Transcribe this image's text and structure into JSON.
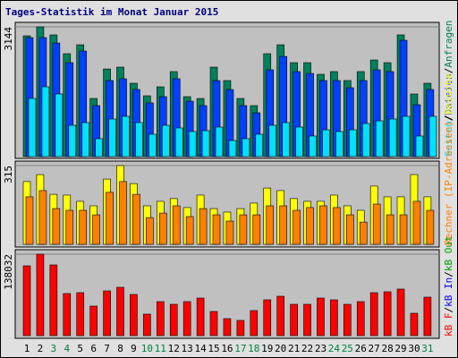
{
  "title": "Tages-Statistik im Monat Januar 2015",
  "legend_separator": "/",
  "chart_data": [
    {
      "type": "bar",
      "ylim": [
        0,
        3144
      ],
      "yticks": [
        3144
      ],
      "grid": true,
      "series": [
        {
          "name": "Anfragen",
          "color": "#00805c",
          "values": [
            2927,
            3144,
            2949,
            2493,
            2710,
            1409,
            2124,
            2168,
            1778,
            1474,
            1691,
            2060,
            1453,
            1409,
            2168,
            1843,
            1409,
            1236,
            2493,
            2710,
            2276,
            2276,
            1995,
            2060,
            1843,
            2060,
            2341,
            2276,
            2949,
            1518,
            1778
          ]
        },
        {
          "name": "Dateien",
          "color": "#0040ff",
          "values": [
            2883,
            2883,
            2753,
            2276,
            2558,
            1236,
            1843,
            1886,
            1626,
            1301,
            1453,
            1886,
            1344,
            1236,
            1843,
            1626,
            1236,
            1062,
            2103,
            2428,
            2060,
            2016,
            1843,
            1843,
            1669,
            1843,
            2103,
            2060,
            2818,
            1258,
            1626
          ]
        },
        {
          "name": "Seiten",
          "color": "#00e0ff",
          "values": [
            1409,
            1691,
            1518,
            759,
            824,
            434,
            911,
            976,
            824,
            542,
            759,
            694,
            607,
            629,
            716,
            390,
            434,
            542,
            759,
            824,
            716,
            499,
            650,
            607,
            650,
            802,
            867,
            911,
            976,
            499,
            976
          ]
        }
      ]
    },
    {
      "type": "bar",
      "ylim": [
        0,
        315
      ],
      "yticks": [
        315
      ],
      "grid": true,
      "series": [
        {
          "name": "Besuche",
          "color": "#ffff00",
          "values": [
            251,
            279,
            200,
            197,
            172,
            154,
            261,
            315,
            243,
            154,
            172,
            183,
            147,
            197,
            143,
            129,
            143,
            165,
            225,
            215,
            183,
            172,
            172,
            197,
            154,
            136,
            233,
            190,
            190,
            279,
            190
          ]
        },
        {
          "name": "Rechner (IP-Adressen)",
          "color": "#ff8000",
          "values": [
            190,
            215,
            143,
            136,
            136,
            118,
            208,
            251,
            200,
            107,
            125,
            154,
            111,
            143,
            118,
            93,
            118,
            118,
            154,
            154,
            136,
            147,
            154,
            147,
            118,
            89,
            161,
            118,
            118,
            172,
            136
          ]
        }
      ]
    },
    {
      "type": "bar",
      "ylim": [
        0,
        138032
      ],
      "yticks": [
        138032
      ],
      "grid": true,
      "categories": [
        "1",
        "2",
        "3",
        "4",
        "5",
        "6",
        "7",
        "8",
        "9",
        "10",
        "11",
        "12",
        "13",
        "14",
        "15",
        "16",
        "17",
        "18",
        "19",
        "20",
        "21",
        "22",
        "23",
        "24",
        "25",
        "26",
        "27",
        "28",
        "29",
        "30",
        "31"
      ],
      "category_colors": [
        "#000000",
        "#000000",
        "#008040",
        "#008040",
        "#000000",
        "#000000",
        "#000000",
        "#000000",
        "#000000",
        "#008040",
        "#008040",
        "#000000",
        "#000000",
        "#000000",
        "#000000",
        "#000000",
        "#008040",
        "#008040",
        "#000000",
        "#000000",
        "#000000",
        "#000000",
        "#000000",
        "#008040",
        "#008040",
        "#000000",
        "#000000",
        "#000000",
        "#000000",
        "#000000",
        "#008040"
      ],
      "series": [
        {
          "name": "kB F",
          "color": "#ff0000",
          "values": [
            118326,
            138032,
            119843,
            71299,
            72816,
            50061,
            75850,
            81918,
            69782,
            36408,
            57646,
            53095,
            57646,
            63714,
            40959,
            28823,
            25789,
            42476,
            60680,
            66748,
            53095,
            53095,
            63714,
            60680,
            53095,
            57646,
            72816,
            74333,
            78884,
            37925,
            65231
          ]
        }
      ],
      "extra_legend": [
        {
          "text": "kB In",
          "color": "#0000ff"
        },
        {
          "text": "kB Out",
          "color": "#00a000"
        }
      ]
    }
  ]
}
